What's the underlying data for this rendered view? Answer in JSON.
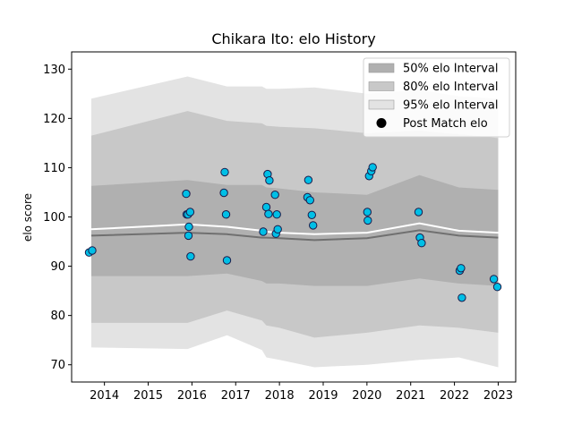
{
  "chart_data": {
    "type": "scatter",
    "title": "Chikara Ito: elo History",
    "xlabel": "",
    "ylabel": "elo score",
    "xlim": [
      2013.25,
      2023.4
    ],
    "ylim": [
      66.5,
      133.5
    ],
    "x_ticks": [
      2014,
      2015,
      2016,
      2017,
      2018,
      2019,
      2020,
      2021,
      2022,
      2023
    ],
    "y_ticks": [
      70,
      80,
      90,
      100,
      110,
      120,
      130
    ],
    "x_tick_labels": [
      "2014",
      "2015",
      "2016",
      "2017",
      "2018",
      "2019",
      "2020",
      "2021",
      "2022",
      "2023"
    ],
    "y_tick_labels": [
      "70",
      "80",
      "90",
      "100",
      "110",
      "120",
      "130"
    ],
    "grid": false,
    "legend_position": "top-right",
    "legend": [
      {
        "label": "50% elo Interval",
        "color": "#b0b0b0",
        "kind": "patch"
      },
      {
        "label": "80% elo Interval",
        "color": "#c8c8c8",
        "kind": "patch"
      },
      {
        "label": "95% elo Interval",
        "color": "#e3e3e3",
        "kind": "patch"
      },
      {
        "label": "Post Match elo",
        "color": "#000000",
        "kind": "marker"
      }
    ],
    "bands": {
      "x": [
        2013.7,
        2015.9,
        2016.8,
        2017.6,
        2017.7,
        2018.0,
        2018.8,
        2020.0,
        2021.2,
        2022.1,
        2023.0
      ],
      "b95_upper": [
        124.0,
        128.5,
        126.5,
        126.5,
        126.0,
        126.0,
        126.3,
        125.0,
        125.8,
        124.5,
        124.0
      ],
      "b95_lower": [
        73.5,
        73.2,
        76.0,
        73.0,
        71.5,
        71.0,
        69.5,
        70.0,
        71.0,
        71.5,
        69.5
      ],
      "b80_upper": [
        116.5,
        121.5,
        119.5,
        119.0,
        118.5,
        118.3,
        118.0,
        117.0,
        117.5,
        116.8,
        116.0
      ],
      "b80_lower": [
        78.5,
        78.5,
        81.0,
        79.0,
        78.0,
        77.5,
        75.5,
        76.5,
        78.0,
        77.5,
        76.5
      ],
      "b50_upper": [
        106.3,
        107.5,
        106.5,
        106.5,
        106.0,
        105.8,
        105.0,
        104.5,
        108.5,
        106.0,
        105.5
      ],
      "b50_lower": [
        88.0,
        88.0,
        88.5,
        87.0,
        86.5,
        86.5,
        86.0,
        86.0,
        87.5,
        86.5,
        86.0
      ],
      "median": [
        96.2,
        96.8,
        96.5,
        95.8,
        95.8,
        95.7,
        95.3,
        95.7,
        97.3,
        96.2,
        95.8
      ],
      "mean": [
        97.5,
        98.5,
        98.0,
        97.2,
        97.0,
        96.8,
        96.5,
        96.8,
        98.7,
        97.2,
        96.8
      ]
    },
    "series": [
      {
        "name": "Post Match elo",
        "x": [
          2013.65,
          2013.72,
          2015.87,
          2015.88,
          2015.91,
          2015.92,
          2015.93,
          2015.96,
          2015.97,
          2016.73,
          2016.75,
          2016.78,
          2016.8,
          2017.63,
          2017.7,
          2017.73,
          2017.75,
          2017.77,
          2017.9,
          2017.92,
          2017.94,
          2017.96,
          2018.64,
          2018.66,
          2018.7,
          2018.74,
          2018.77,
          2020.01,
          2020.02,
          2020.05,
          2020.1,
          2020.13,
          2021.18,
          2021.21,
          2021.25,
          2022.12,
          2022.15,
          2022.17,
          2022.9,
          2022.98
        ],
        "y": [
          92.8,
          93.2,
          104.7,
          100.5,
          100.5,
          96.2,
          98.0,
          101.0,
          92.0,
          104.9,
          109.1,
          100.5,
          91.2,
          97.0,
          102.0,
          108.7,
          100.6,
          107.4,
          104.5,
          96.6,
          100.5,
          97.5,
          104.0,
          107.5,
          103.4,
          100.4,
          98.3,
          101.0,
          99.3,
          108.3,
          109.3,
          110.1,
          101.0,
          95.8,
          94.7,
          89.1,
          89.6,
          83.6,
          87.4,
          85.8
        ]
      }
    ]
  }
}
